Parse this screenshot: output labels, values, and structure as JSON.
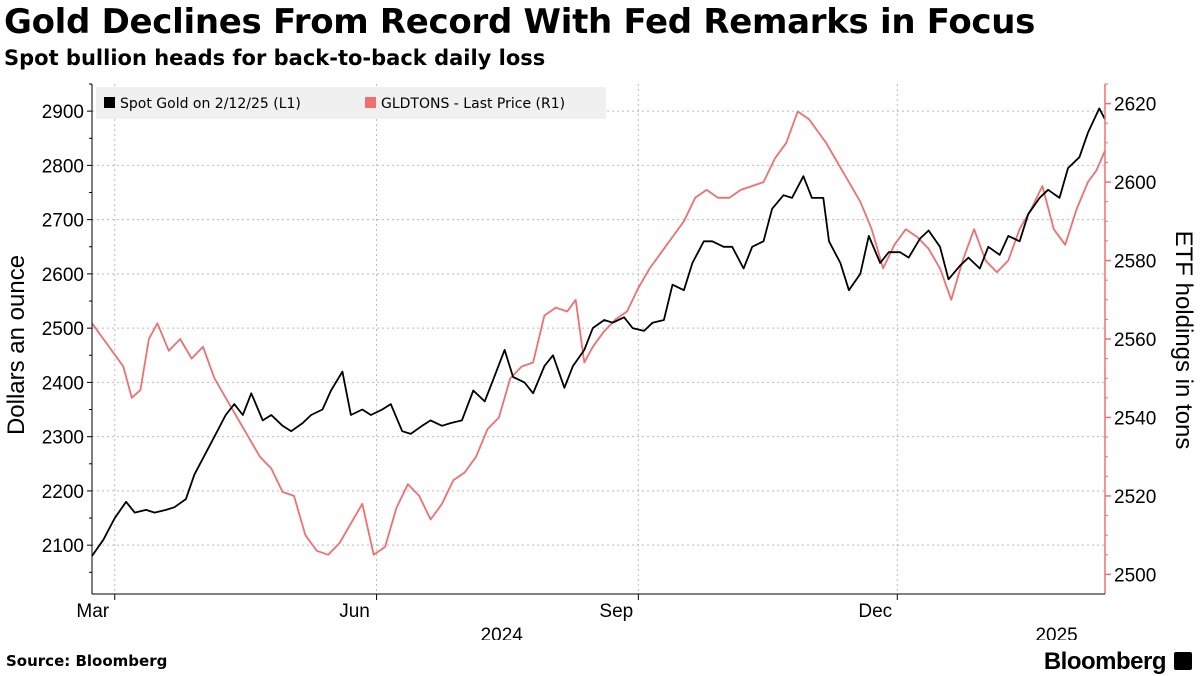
{
  "header": {
    "title": "Gold Declines From Record With Fed Remarks in Focus",
    "subtitle": "Spot bullion heads for back-to-back daily loss"
  },
  "footer": {
    "source": "Source: Bloomberg",
    "brand": "Bloomberg"
  },
  "colors": {
    "gold": "#000000",
    "etf": "#f07070",
    "grid": "#bbbbbb"
  },
  "chart_data": {
    "type": "line",
    "title": "Gold Declines From Record With Fed Remarks in Focus",
    "subtitle": "Spot bullion heads for back-to-back daily loss",
    "legend_position": "top-left",
    "x_range": [
      "2024-02-22",
      "2025-02-12"
    ],
    "x_ticks": [
      {
        "label": "Mar",
        "date": "2024-03-01"
      },
      {
        "label": "Jun",
        "date": "2024-06-01"
      },
      {
        "label": "Sep",
        "date": "2024-09-01"
      },
      {
        "label": "Dec",
        "date": "2024-12-01"
      }
    ],
    "x_year_labels": [
      {
        "label": "2024",
        "date": "2024-07-15"
      },
      {
        "label": "2025",
        "date": "2025-01-26"
      }
    ],
    "y_left": {
      "label": "Dollars an ounce",
      "range": [
        2010,
        2950
      ],
      "ticks": [
        2100,
        2200,
        2300,
        2400,
        2500,
        2600,
        2700,
        2800,
        2900
      ]
    },
    "y_right": {
      "label": "ETF holdings in tons",
      "range": [
        2495,
        2625
      ],
      "ticks": [
        2500,
        2520,
        2540,
        2560,
        2580,
        2600,
        2620
      ]
    },
    "series": [
      {
        "name": "Spot Gold on 2/12/25 (L1)",
        "axis": "left",
        "points": [
          [
            "2024-02-22",
            2080
          ],
          [
            "2024-02-26",
            2110
          ],
          [
            "2024-03-01",
            2150
          ],
          [
            "2024-03-05",
            2180
          ],
          [
            "2024-03-08",
            2160
          ],
          [
            "2024-03-12",
            2165
          ],
          [
            "2024-03-15",
            2160
          ],
          [
            "2024-03-19",
            2165
          ],
          [
            "2024-03-22",
            2170
          ],
          [
            "2024-03-26",
            2185
          ],
          [
            "2024-03-29",
            2230
          ],
          [
            "2024-04-02",
            2270
          ],
          [
            "2024-04-05",
            2300
          ],
          [
            "2024-04-09",
            2340
          ],
          [
            "2024-04-12",
            2360
          ],
          [
            "2024-04-15",
            2340
          ],
          [
            "2024-04-18",
            2380
          ],
          [
            "2024-04-22",
            2330
          ],
          [
            "2024-04-25",
            2340
          ],
          [
            "2024-04-29",
            2320
          ],
          [
            "2024-05-02",
            2310
          ],
          [
            "2024-05-06",
            2325
          ],
          [
            "2024-05-09",
            2340
          ],
          [
            "2024-05-13",
            2350
          ],
          [
            "2024-05-16",
            2385
          ],
          [
            "2024-05-20",
            2420
          ],
          [
            "2024-05-23",
            2340
          ],
          [
            "2024-05-27",
            2350
          ],
          [
            "2024-05-30",
            2340
          ],
          [
            "2024-06-03",
            2350
          ],
          [
            "2024-06-06",
            2360
          ],
          [
            "2024-06-10",
            2310
          ],
          [
            "2024-06-13",
            2305
          ],
          [
            "2024-06-17",
            2320
          ],
          [
            "2024-06-20",
            2330
          ],
          [
            "2024-06-24",
            2320
          ],
          [
            "2024-06-27",
            2325
          ],
          [
            "2024-07-01",
            2330
          ],
          [
            "2024-07-05",
            2385
          ],
          [
            "2024-07-09",
            2365
          ],
          [
            "2024-07-12",
            2405
          ],
          [
            "2024-07-16",
            2460
          ],
          [
            "2024-07-19",
            2410
          ],
          [
            "2024-07-23",
            2400
          ],
          [
            "2024-07-26",
            2380
          ],
          [
            "2024-07-30",
            2430
          ],
          [
            "2024-08-02",
            2450
          ],
          [
            "2024-08-06",
            2390
          ],
          [
            "2024-08-09",
            2430
          ],
          [
            "2024-08-13",
            2460
          ],
          [
            "2024-08-16",
            2500
          ],
          [
            "2024-08-20",
            2515
          ],
          [
            "2024-08-23",
            2510
          ],
          [
            "2024-08-27",
            2520
          ],
          [
            "2024-08-30",
            2500
          ],
          [
            "2024-09-03",
            2495
          ],
          [
            "2024-09-06",
            2510
          ],
          [
            "2024-09-10",
            2515
          ],
          [
            "2024-09-13",
            2580
          ],
          [
            "2024-09-17",
            2570
          ],
          [
            "2024-09-20",
            2620
          ],
          [
            "2024-09-24",
            2660
          ],
          [
            "2024-09-27",
            2660
          ],
          [
            "2024-10-01",
            2650
          ],
          [
            "2024-10-04",
            2650
          ],
          [
            "2024-10-08",
            2610
          ],
          [
            "2024-10-11",
            2650
          ],
          [
            "2024-10-15",
            2660
          ],
          [
            "2024-10-18",
            2720
          ],
          [
            "2024-10-22",
            2745
          ],
          [
            "2024-10-25",
            2740
          ],
          [
            "2024-10-29",
            2780
          ],
          [
            "2024-11-01",
            2740
          ],
          [
            "2024-11-05",
            2740
          ],
          [
            "2024-11-07",
            2660
          ],
          [
            "2024-11-11",
            2620
          ],
          [
            "2024-11-14",
            2570
          ],
          [
            "2024-11-18",
            2600
          ],
          [
            "2024-11-21",
            2670
          ],
          [
            "2024-11-25",
            2620
          ],
          [
            "2024-11-28",
            2640
          ],
          [
            "2024-12-02",
            2640
          ],
          [
            "2024-12-05",
            2630
          ],
          [
            "2024-12-09",
            2665
          ],
          [
            "2024-12-12",
            2680
          ],
          [
            "2024-12-16",
            2650
          ],
          [
            "2024-12-19",
            2590
          ],
          [
            "2024-12-23",
            2615
          ],
          [
            "2024-12-26",
            2630
          ],
          [
            "2024-12-30",
            2610
          ],
          [
            "2025-01-02",
            2650
          ],
          [
            "2025-01-06",
            2635
          ],
          [
            "2025-01-09",
            2670
          ],
          [
            "2025-01-13",
            2660
          ],
          [
            "2025-01-16",
            2710
          ],
          [
            "2025-01-20",
            2740
          ],
          [
            "2025-01-23",
            2755
          ],
          [
            "2025-01-27",
            2740
          ],
          [
            "2025-01-30",
            2795
          ],
          [
            "2025-02-03",
            2815
          ],
          [
            "2025-02-06",
            2860
          ],
          [
            "2025-02-10",
            2905
          ],
          [
            "2025-02-12",
            2885
          ]
        ]
      },
      {
        "name": "GLDTONS - Last Price (R1)",
        "axis": "right",
        "points": [
          [
            "2024-02-22",
            2564
          ],
          [
            "2024-02-26",
            2560
          ],
          [
            "2024-03-01",
            2556
          ],
          [
            "2024-03-04",
            2553
          ],
          [
            "2024-03-07",
            2545
          ],
          [
            "2024-03-10",
            2547
          ],
          [
            "2024-03-13",
            2560
          ],
          [
            "2024-03-16",
            2564
          ],
          [
            "2024-03-20",
            2557
          ],
          [
            "2024-03-24",
            2560
          ],
          [
            "2024-03-28",
            2555
          ],
          [
            "2024-04-01",
            2558
          ],
          [
            "2024-04-05",
            2550
          ],
          [
            "2024-04-09",
            2545
          ],
          [
            "2024-04-13",
            2540
          ],
          [
            "2024-04-17",
            2535
          ],
          [
            "2024-04-21",
            2530
          ],
          [
            "2024-04-25",
            2527
          ],
          [
            "2024-04-29",
            2521
          ],
          [
            "2024-05-03",
            2520
          ],
          [
            "2024-05-07",
            2510
          ],
          [
            "2024-05-11",
            2506
          ],
          [
            "2024-05-15",
            2505
          ],
          [
            "2024-05-19",
            2508
          ],
          [
            "2024-05-23",
            2513
          ],
          [
            "2024-05-27",
            2518
          ],
          [
            "2024-05-31",
            2505
          ],
          [
            "2024-06-04",
            2507
          ],
          [
            "2024-06-08",
            2517
          ],
          [
            "2024-06-12",
            2523
          ],
          [
            "2024-06-16",
            2520
          ],
          [
            "2024-06-20",
            2514
          ],
          [
            "2024-06-24",
            2518
          ],
          [
            "2024-06-28",
            2524
          ],
          [
            "2024-07-02",
            2526
          ],
          [
            "2024-07-06",
            2530
          ],
          [
            "2024-07-10",
            2537
          ],
          [
            "2024-07-14",
            2540
          ],
          [
            "2024-07-18",
            2550
          ],
          [
            "2024-07-22",
            2553
          ],
          [
            "2024-07-26",
            2554
          ],
          [
            "2024-07-30",
            2566
          ],
          [
            "2024-08-03",
            2568
          ],
          [
            "2024-08-07",
            2567
          ],
          [
            "2024-08-10",
            2570
          ],
          [
            "2024-08-13",
            2554
          ],
          [
            "2024-08-16",
            2558
          ],
          [
            "2024-08-20",
            2562
          ],
          [
            "2024-08-24",
            2565
          ],
          [
            "2024-08-28",
            2567
          ],
          [
            "2024-09-01",
            2573
          ],
          [
            "2024-09-05",
            2578
          ],
          [
            "2024-09-09",
            2582
          ],
          [
            "2024-09-13",
            2586
          ],
          [
            "2024-09-17",
            2590
          ],
          [
            "2024-09-21",
            2596
          ],
          [
            "2024-09-25",
            2598
          ],
          [
            "2024-09-29",
            2596
          ],
          [
            "2024-10-03",
            2596
          ],
          [
            "2024-10-07",
            2598
          ],
          [
            "2024-10-11",
            2599
          ],
          [
            "2024-10-15",
            2600
          ],
          [
            "2024-10-19",
            2606
          ],
          [
            "2024-10-23",
            2610
          ],
          [
            "2024-10-27",
            2618
          ],
          [
            "2024-10-31",
            2616
          ],
          [
            "2024-11-03",
            2613
          ],
          [
            "2024-11-06",
            2610
          ],
          [
            "2024-11-10",
            2605
          ],
          [
            "2024-11-14",
            2600
          ],
          [
            "2024-11-18",
            2595
          ],
          [
            "2024-11-22",
            2588
          ],
          [
            "2024-11-26",
            2578
          ],
          [
            "2024-11-30",
            2584
          ],
          [
            "2024-12-04",
            2588
          ],
          [
            "2024-12-08",
            2586
          ],
          [
            "2024-12-12",
            2583
          ],
          [
            "2024-12-16",
            2578
          ],
          [
            "2024-12-20",
            2570
          ],
          [
            "2024-12-24",
            2580
          ],
          [
            "2024-12-28",
            2588
          ],
          [
            "2025-01-01",
            2580
          ],
          [
            "2025-01-05",
            2577
          ],
          [
            "2025-01-09",
            2580
          ],
          [
            "2025-01-13",
            2588
          ],
          [
            "2025-01-17",
            2593
          ],
          [
            "2025-01-21",
            2599
          ],
          [
            "2025-01-25",
            2588
          ],
          [
            "2025-01-29",
            2584
          ],
          [
            "2025-02-02",
            2593
          ],
          [
            "2025-02-06",
            2600
          ],
          [
            "2025-02-09",
            2603
          ],
          [
            "2025-02-12",
            2608
          ]
        ]
      }
    ]
  }
}
